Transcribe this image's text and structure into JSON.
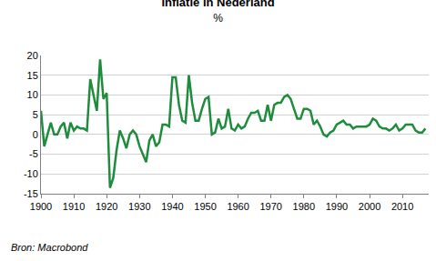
{
  "chart_data": {
    "type": "line",
    "title": "Inflatie in Nederland",
    "subtitle": "%",
    "source": "Bron: Macrobond",
    "color": "#1e8c3c",
    "grid": true,
    "x": [
      1900,
      1901,
      1902,
      1903,
      1904,
      1905,
      1906,
      1907,
      1908,
      1909,
      1910,
      1911,
      1912,
      1913,
      1914,
      1915,
      1916,
      1917,
      1918,
      1919,
      1920,
      1921,
      1922,
      1923,
      1924,
      1925,
      1926,
      1927,
      1928,
      1929,
      1930,
      1931,
      1932,
      1933,
      1934,
      1935,
      1936,
      1937,
      1938,
      1939,
      1940,
      1941,
      1942,
      1943,
      1944,
      1945,
      1946,
      1947,
      1948,
      1949,
      1950,
      1951,
      1952,
      1953,
      1954,
      1955,
      1956,
      1957,
      1958,
      1959,
      1960,
      1961,
      1962,
      1963,
      1964,
      1965,
      1966,
      1967,
      1968,
      1969,
      1970,
      1971,
      1972,
      1973,
      1974,
      1975,
      1976,
      1977,
      1978,
      1979,
      1980,
      1981,
      1982,
      1983,
      1984,
      1985,
      1986,
      1987,
      1988,
      1989,
      1990,
      1991,
      1992,
      1993,
      1994,
      1995,
      1996,
      1997,
      1998,
      1999,
      2000,
      2001,
      2002,
      2003,
      2004,
      2005,
      2006,
      2007,
      2008,
      2009,
      2010,
      2011,
      2012,
      2013,
      2014,
      2015,
      2016,
      2017
    ],
    "values": [
      6,
      -3,
      0,
      3,
      0,
      0,
      2,
      3,
      -1,
      3,
      1,
      2,
      1.5,
      1.5,
      1,
      14,
      10,
      6,
      19,
      9,
      10.5,
      -13.5,
      -11,
      -4,
      1,
      -1,
      -3.5,
      0,
      1,
      0,
      -3,
      -5,
      -7,
      -1.5,
      0,
      -3,
      -2,
      2.5,
      2.5,
      2,
      14.5,
      14.5,
      7.5,
      3.5,
      3,
      15,
      8,
      3.5,
      3.5,
      6.5,
      9,
      9.5,
      0,
      0.5,
      4,
      1.5,
      2,
      6.5,
      1.5,
      1,
      2.5,
      1.5,
      2,
      4,
      5.5,
      5.5,
      6,
      3.5,
      3.5,
      7.5,
      3.5,
      7.5,
      8,
      8,
      9.5,
      10,
      9,
      6.5,
      4,
      4,
      6.5,
      6.5,
      6,
      2.5,
      3.5,
      2,
      0,
      -0.5,
      0.5,
      1,
      2.5,
      3,
      3.5,
      2.5,
      2.5,
      1.5,
      2,
      2,
      2,
      2,
      2.5,
      4,
      3.5,
      2,
      1.5,
      1.5,
      1,
      1.5,
      2.5,
      1,
      1.5,
      2.5,
      2.5,
      2.5,
      1,
      0.5,
      0.5,
      1.5
    ],
    "xlim": [
      1900,
      2018
    ],
    "xticks": [
      1900,
      1910,
      1920,
      1930,
      1940,
      1950,
      1960,
      1970,
      1980,
      1990,
      2000,
      2010
    ],
    "ylim": [
      -15,
      20
    ],
    "yticks": [
      -15,
      -10,
      -5,
      0,
      5,
      10,
      15,
      20
    ]
  }
}
